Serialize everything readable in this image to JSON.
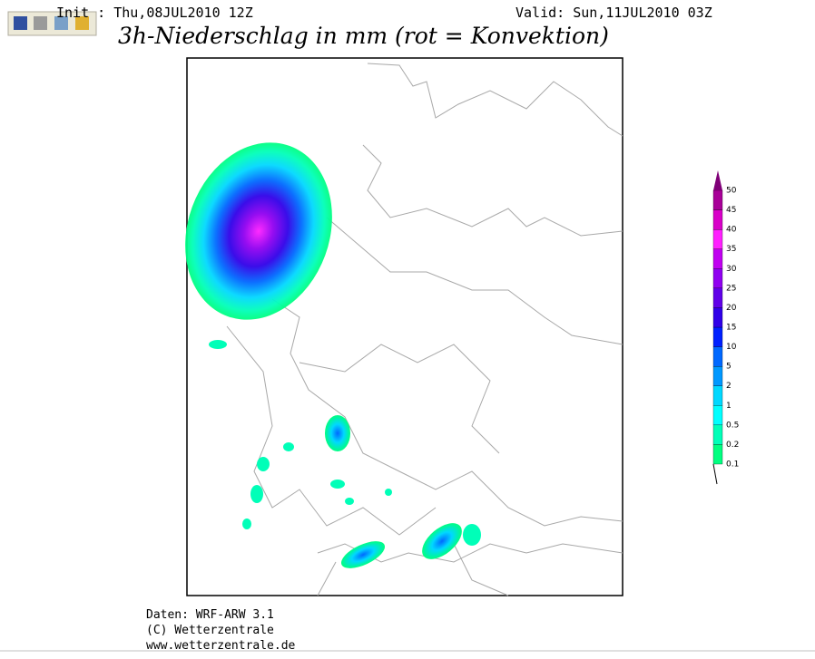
{
  "header": {
    "init": "Init : Thu,08JUL2010 12Z",
    "valid": "Valid: Sun,11JUL2010 03Z",
    "title": "3h-Niederschlag in mm (rot = Konvektion)"
  },
  "legend": {
    "levels": [
      "0.1",
      "0.2",
      "0.5",
      "1",
      "2",
      "5",
      "10",
      "15",
      "20",
      "25",
      "30",
      "35",
      "40",
      "45",
      "50"
    ],
    "colors": [
      "#00ff80",
      "#00ffb8",
      "#00ffff",
      "#00d8ff",
      "#0098ff",
      "#0068ff",
      "#0020ff",
      "#3000e8",
      "#6000e8",
      "#9000f0",
      "#c000f0",
      "#ff20ff",
      "#d800c8",
      "#a80098",
      "#800078"
    ]
  },
  "footer": {
    "lines": [
      "Daten: WRF-ARW 3.1",
      "(C) Wetterzentrale",
      "www.wetterzentrale.de"
    ]
  }
}
